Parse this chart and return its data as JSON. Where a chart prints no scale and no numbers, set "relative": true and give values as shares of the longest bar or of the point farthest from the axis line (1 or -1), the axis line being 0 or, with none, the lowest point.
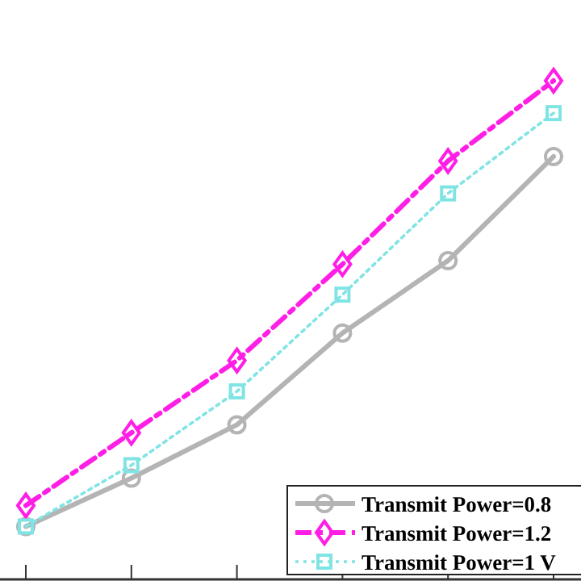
{
  "chart_data": {
    "type": "line",
    "relative": true,
    "categories": [
      null,
      null,
      null,
      null,
      null,
      null
    ],
    "legend": "bottom right",
    "series": [
      {
        "name": "Transmit Power=0.8",
        "color": "#b4b4b4",
        "marker": "circle",
        "line_style": "solid",
        "values": [
          0.106,
          0.203,
          0.31,
          0.494,
          0.639,
          0.848
        ]
      },
      {
        "name": "Transmit Power=1.2",
        "color": "#ff1ee6",
        "marker": "diamond",
        "line_style": "dashed",
        "values": [
          0.148,
          0.294,
          0.439,
          0.632,
          0.839,
          1
        ]
      },
      {
        "name": "Transmit Power=1 V",
        "color": "#80e4e4",
        "marker": "square",
        "line_style": "dotted",
        "values": [
          0.106,
          0.229,
          0.377,
          0.571,
          0.774,
          0.935
        ]
      }
    ]
  }
}
